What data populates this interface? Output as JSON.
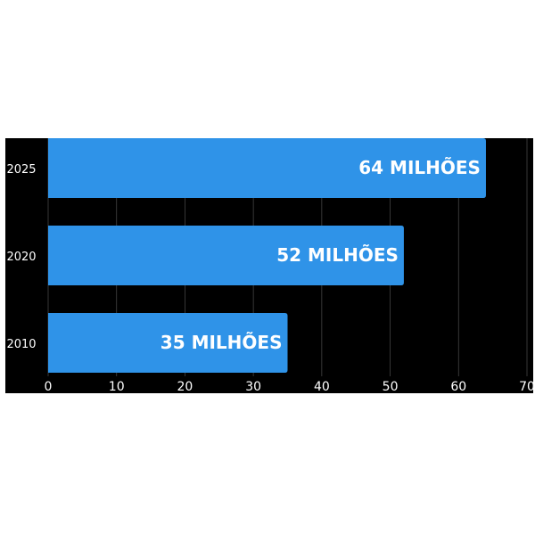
{
  "chart_data": {
    "type": "barh",
    "categories": [
      "2010",
      "2020",
      "2025"
    ],
    "values": [
      35,
      52,
      64
    ],
    "value_labels": [
      "35 MILHÕES",
      "52 MILHÕES",
      "64 MILHÕES"
    ],
    "color": "#2f93e8",
    "xlim": [
      0,
      70
    ],
    "xticks": [
      0,
      10,
      20,
      30,
      40,
      50,
      60,
      70
    ],
    "grid": true
  }
}
